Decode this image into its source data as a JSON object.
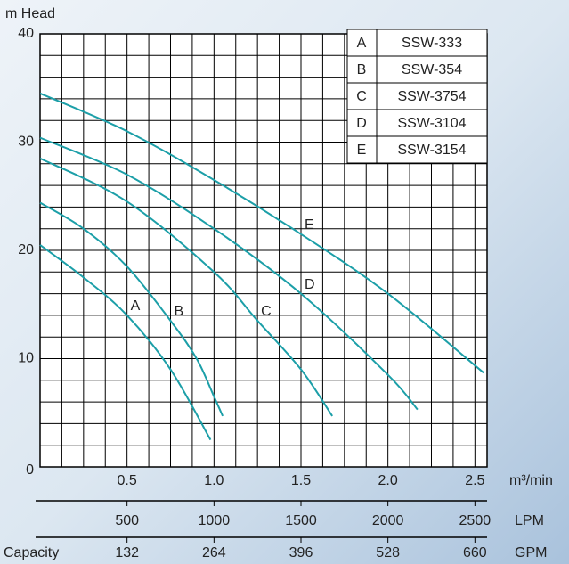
{
  "chart_data": {
    "type": "line",
    "y_label": "m  Head",
    "x_label": "m³/min",
    "color": "#1c9fa8",
    "xlim": [
      0,
      2.57
    ],
    "xticks": [
      0.5,
      1.0,
      1.5,
      2.0,
      2.5
    ],
    "xtick_labels": [
      "0.5",
      "1.0",
      "1.5",
      "2.0",
      "2.5"
    ],
    "ylim": [
      0,
      40
    ],
    "yticks": [
      0,
      10,
      20,
      30,
      40
    ],
    "x_grid": [
      0.125,
      0.25,
      0.375,
      0.5,
      0.625,
      0.75,
      0.875,
      1.0,
      1.125,
      1.25,
      1.375,
      1.5,
      1.625,
      1.75,
      1.875,
      2.0,
      2.125,
      2.25,
      2.375,
      2.5
    ],
    "y_grid": [
      2,
      4,
      6,
      8,
      10,
      12,
      14,
      16,
      18,
      20,
      22,
      24,
      26,
      28,
      30,
      32,
      34,
      36,
      38
    ],
    "x2lim": [
      0,
      2570
    ],
    "x2ticks": [
      500,
      1000,
      1500,
      2000,
      2500
    ],
    "x2_label": "LPM",
    "x3lim": [
      0,
      678.48
    ],
    "x3ticks": [
      132,
      264,
      396,
      528,
      660
    ],
    "x3_label": "GPM",
    "x3_title": "Capacity",
    "series": [
      {
        "id": "A",
        "name": "SSW-333",
        "x": [
          0,
          0.25,
          0.5,
          0.75,
          0.98
        ],
        "y": [
          20.5,
          17.5,
          14,
          9,
          2.5
        ]
      },
      {
        "id": "B",
        "name": "SSW-354",
        "x": [
          0,
          0.25,
          0.5,
          0.75,
          0.9,
          1.0,
          1.05
        ],
        "y": [
          24.4,
          22,
          18.5,
          13.5,
          10,
          6.5,
          4.7
        ]
      },
      {
        "id": "C",
        "name": "SSW-3754",
        "x": [
          0,
          0.5,
          1.0,
          1.25,
          1.5,
          1.68
        ],
        "y": [
          28.5,
          24.5,
          18,
          13.5,
          9,
          4.7
        ]
      },
      {
        "id": "D",
        "name": "SSW-3104",
        "x": [
          0,
          0.5,
          1.0,
          1.5,
          2.0,
          2.17
        ],
        "y": [
          30.4,
          27,
          22,
          16,
          8.5,
          5.3
        ]
      },
      {
        "id": "E",
        "name": "SSW-3154",
        "x": [
          0,
          0.5,
          1.0,
          1.5,
          2.0,
          2.55
        ],
        "y": [
          34.5,
          31,
          26.5,
          21.5,
          16,
          8.7
        ]
      }
    ]
  }
}
